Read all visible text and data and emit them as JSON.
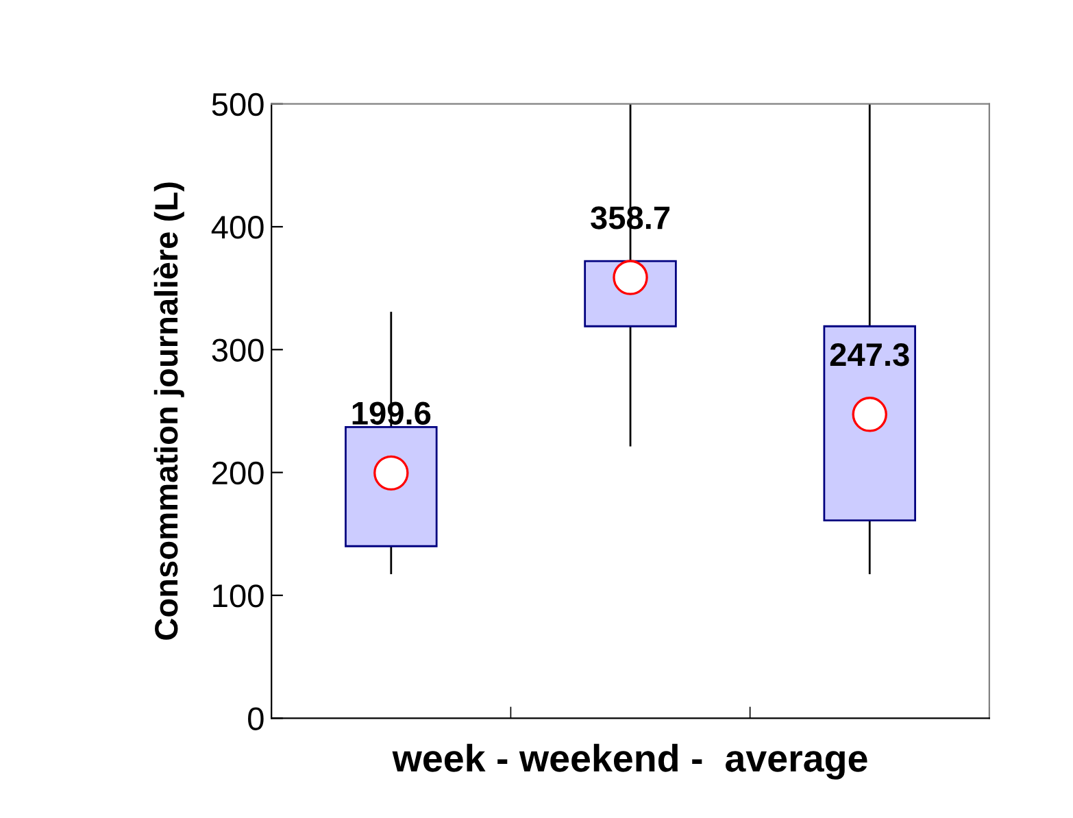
{
  "chart_data": {
    "type": "box",
    "ylabel": "Consommation journalière (L)",
    "xlabel": "week - weekend -  average",
    "categories": [
      null,
      null,
      null
    ],
    "boxes": [
      {
        "low": 118,
        "q1": 140,
        "median": null,
        "q3": 237,
        "high": 330,
        "mean": 199.6
      },
      {
        "low": 222,
        "q1": 319,
        "median": null,
        "q3": 372,
        "high": 500,
        "mean": 358.7
      },
      {
        "low": 118,
        "q1": 161,
        "median": null,
        "q3": 319,
        "high": 500,
        "mean": 247.3
      }
    ],
    "annotations": [
      "199.6",
      "358.7",
      "247.3"
    ],
    "color": "#ccccff",
    "ylim": [
      0,
      500
    ],
    "yticks": [
      0,
      100,
      200,
      300,
      400,
      500
    ],
    "grid": false,
    "legend": false
  }
}
